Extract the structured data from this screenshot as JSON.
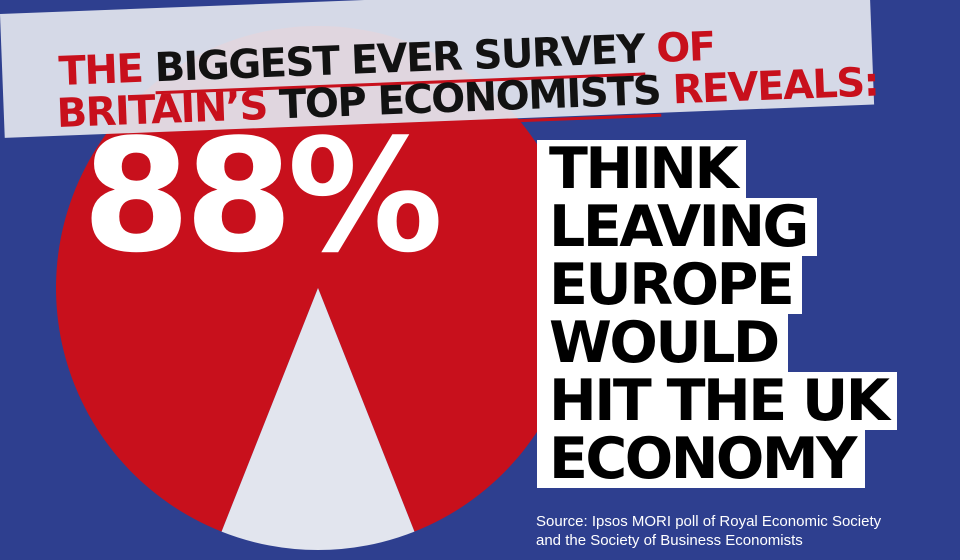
{
  "header": {
    "line1": [
      {
        "text": "THE ",
        "color": "red",
        "underline": false
      },
      {
        "text": "BIGGEST EVER SURVEY",
        "color": "dark",
        "underline": true
      },
      {
        "text": " OF",
        "color": "red",
        "underline": false
      }
    ],
    "line2": [
      {
        "text": "BRITAIN’S ",
        "color": "red",
        "underline": false
      },
      {
        "text": "TOP ECONOMISTS",
        "color": "dark",
        "underline": true
      },
      {
        "text": " REVEALS:",
        "color": "red",
        "underline": false
      }
    ]
  },
  "headline_stat": "88%",
  "claim_lines": [
    "THINK",
    "LEAVING",
    "EUROPE",
    "WOULD",
    "HIT THE UK",
    "ECONOMY"
  ],
  "source": {
    "line1": "Source: Ipsos MORI poll of Royal Economic Society",
    "line2": "and the Society of Business Economists"
  },
  "colors": {
    "background": "#2e3f8f",
    "accent_red": "#c8101c",
    "light": "#e2e5ee",
    "dark_text": "#121212"
  },
  "chart_data": {
    "type": "pie",
    "title": "",
    "slices": [
      {
        "label": "88%",
        "value": 88,
        "color": "#c8101c"
      },
      {
        "label": "",
        "value": 12,
        "color": "#e2e5ee"
      }
    ]
  }
}
